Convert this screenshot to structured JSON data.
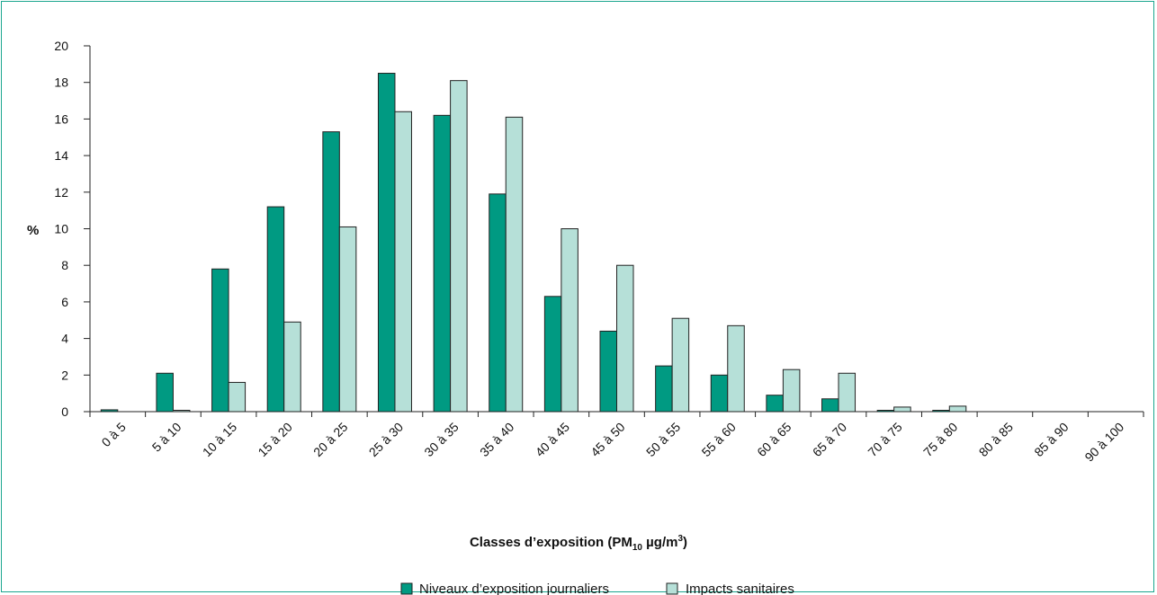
{
  "chart_data": {
    "type": "bar",
    "ylabel": "%",
    "xlabel": {
      "prefix": "Classes d’exposition (PM",
      "subscript": "10",
      "middle": " µg/m",
      "superscript": "3",
      "suffix": ")"
    },
    "ylim": [
      0,
      20
    ],
    "yticks": [
      0,
      2,
      4,
      6,
      8,
      10,
      12,
      14,
      16,
      18,
      20
    ],
    "categories": [
      "0 à 5",
      "5 à 10",
      "10 à 15",
      "15 à 20",
      "20 à 25",
      "25 à 30",
      "30 à 35",
      "35 à 40",
      "40 à 45",
      "45 à 50",
      "50 à 55",
      "55 à 60",
      "60 à 65",
      "65 à 70",
      "70 à 75",
      "75 à 80",
      "80 à 85",
      "85 à 90",
      "90 à 100"
    ],
    "series": [
      {
        "name": "Niveaux d’exposition journaliers",
        "color": "#009a82",
        "values": [
          0.1,
          2.1,
          7.8,
          11.2,
          15.3,
          18.5,
          16.2,
          11.9,
          6.3,
          4.4,
          2.5,
          2.0,
          0.9,
          0.7,
          0.05,
          0.05,
          0,
          0,
          0
        ]
      },
      {
        "name": "Impacts sanitaires",
        "color": "#b6e0d8",
        "values": [
          0,
          0.05,
          1.6,
          4.9,
          10.1,
          16.4,
          18.1,
          16.1,
          10.0,
          8.0,
          5.1,
          4.7,
          2.3,
          2.1,
          0.25,
          0.3,
          0,
          0,
          0
        ]
      }
    ],
    "legend_position": "bottom",
    "grid": false
  }
}
